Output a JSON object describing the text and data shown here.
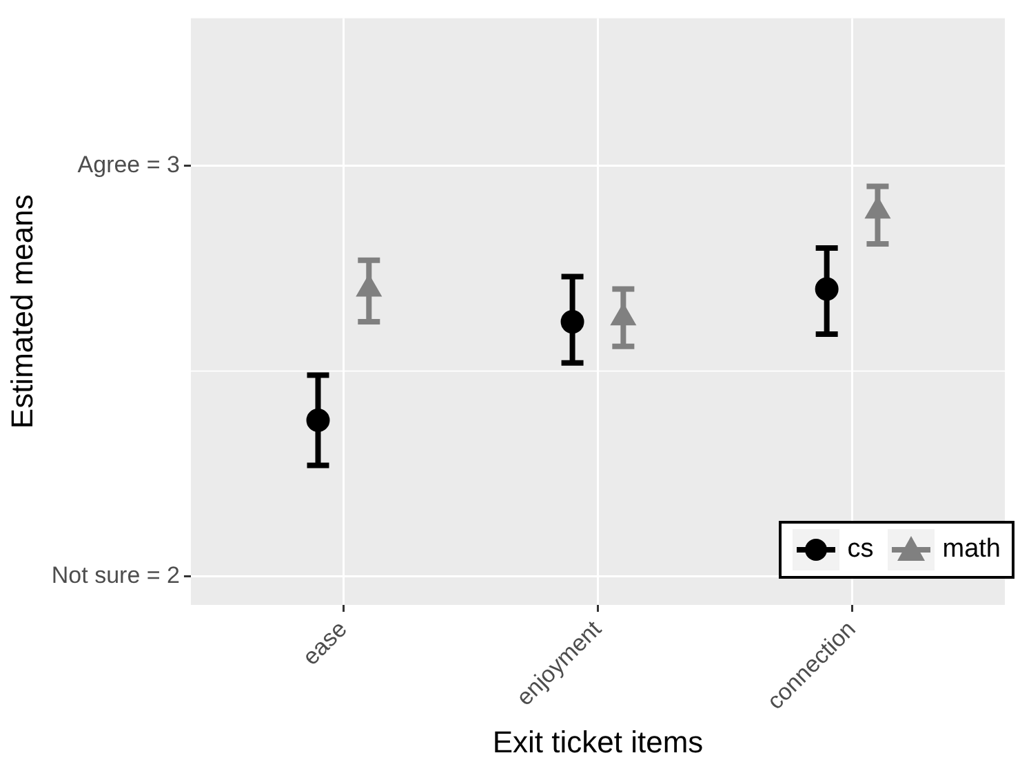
{
  "chart_data": {
    "type": "scatter",
    "xlabel": "Exit ticket items",
    "ylabel": "Estimated means",
    "categories": [
      "ease",
      "enjoyment",
      "connection"
    ],
    "ylim": [
      1.93,
      3.36
    ],
    "yticks": [
      {
        "value": 2,
        "label": "Not sure = 2"
      },
      {
        "value": 3,
        "label": "Agree = 3"
      }
    ],
    "ref_lines": [
      {
        "axis": "y",
        "value": 2.5,
        "color": "#ffffff"
      }
    ],
    "grid": true,
    "legend": "bottom right",
    "series": [
      {
        "name": "cs",
        "color": "#000000",
        "marker": "circle",
        "values": [
          2.38,
          2.62,
          2.7
        ],
        "errors": [
          [
            2.27,
            2.49
          ],
          [
            2.52,
            2.73
          ],
          [
            2.59,
            2.8
          ]
        ]
      },
      {
        "name": "math",
        "color": "#808080",
        "marker": "triangle",
        "values": [
          2.7,
          2.63,
          2.89
        ],
        "errors": [
          [
            2.62,
            2.77
          ],
          [
            2.56,
            2.7
          ],
          [
            2.81,
            2.95
          ]
        ]
      }
    ]
  }
}
